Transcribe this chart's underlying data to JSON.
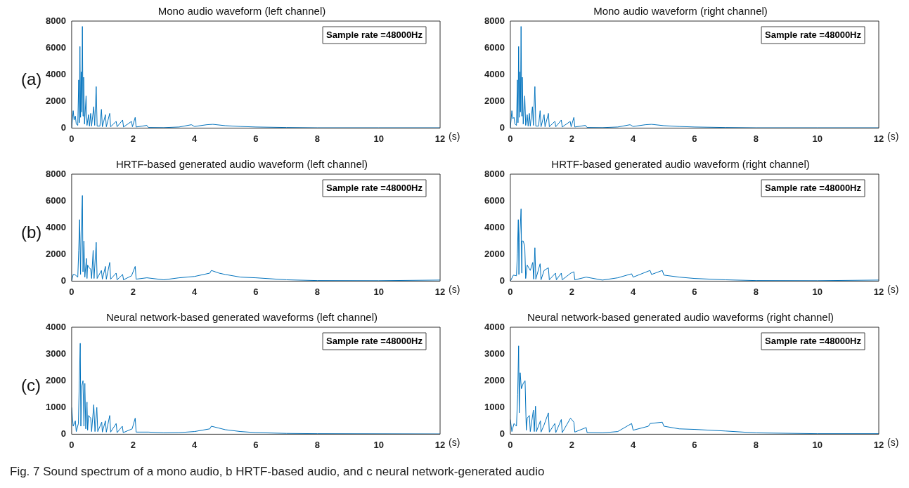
{
  "chart_data": [
    {
      "type": "line",
      "title": "Mono audio waveform (left channel)",
      "xlabel": "(s)",
      "annotations": [
        "Sample rate =48000Hz",
        "(a)"
      ],
      "marker": "none",
      "xlim": [
        0,
        12
      ],
      "xticks": [
        0,
        2,
        4,
        6,
        8,
        10,
        12
      ],
      "ylim": [
        0,
        8000
      ],
      "yticks": [
        0,
        2000,
        4000,
        6000,
        8000
      ],
      "series": [
        {
          "color": "#0072bd",
          "x": [
            0,
            0.05,
            0.08,
            0.12,
            0.15,
            0.2,
            0.23,
            0.25,
            0.27,
            0.29,
            0.31,
            0.33,
            0.35,
            0.37,
            0.39,
            0.42,
            0.47,
            0.5,
            0.55,
            0.58,
            0.62,
            0.65,
            0.72,
            0.75,
            0.8,
            0.83,
            0.92,
            0.97,
            1.0,
            1.1,
            1.13,
            1.24,
            1.27,
            1.45,
            1.48,
            1.66,
            1.69,
            1.95,
            1.98,
            2.07,
            2.1,
            2.45,
            2.5,
            3.0,
            3.5,
            3.9,
            4.0,
            4.4,
            4.6,
            5.0,
            5.5,
            6.0,
            7.0,
            8.0,
            10,
            12
          ],
          "values": [
            0,
            1300,
            600,
            900,
            300,
            200,
            3600,
            400,
            6100,
            800,
            4200,
            1200,
            7600,
            900,
            3800,
            300,
            2400,
            200,
            1000,
            150,
            1100,
            150,
            1600,
            200,
            3100,
            150,
            150,
            1400,
            100,
            1000,
            100,
            1100,
            100,
            500,
            100,
            600,
            80,
            500,
            100,
            800,
            80,
            200,
            40,
            30,
            80,
            250,
            120,
            250,
            280,
            180,
            120,
            80,
            40,
            20,
            20,
            20
          ]
        }
      ]
    },
    {
      "type": "line",
      "title": "Mono audio waveform (right channel)",
      "xlabel": "(s)",
      "annotations": [
        "Sample rate =48000Hz"
      ],
      "marker": "none",
      "xlim": [
        0,
        12
      ],
      "xticks": [
        0,
        2,
        4,
        6,
        8,
        10,
        12
      ],
      "ylim": [
        0,
        8000
      ],
      "yticks": [
        0,
        2000,
        4000,
        6000,
        8000
      ],
      "series": [
        {
          "color": "#0072bd",
          "x": [
            0,
            0.05,
            0.08,
            0.12,
            0.15,
            0.2,
            0.23,
            0.25,
            0.27,
            0.29,
            0.31,
            0.33,
            0.35,
            0.37,
            0.39,
            0.42,
            0.47,
            0.5,
            0.55,
            0.58,
            0.62,
            0.65,
            0.72,
            0.75,
            0.8,
            0.83,
            0.92,
            0.97,
            1.0,
            1.1,
            1.13,
            1.24,
            1.27,
            1.45,
            1.48,
            1.66,
            1.69,
            1.95,
            1.98,
            2.07,
            2.1,
            2.45,
            2.5,
            3.0,
            3.5,
            3.9,
            4.0,
            4.4,
            4.6,
            5.0,
            5.5,
            6.0,
            7.0,
            8.0,
            10,
            12
          ],
          "values": [
            0,
            1300,
            700,
            800,
            300,
            200,
            3600,
            400,
            6100,
            800,
            4200,
            1200,
            7600,
            900,
            3800,
            300,
            2400,
            200,
            1000,
            150,
            1100,
            150,
            1600,
            200,
            3100,
            150,
            150,
            1300,
            100,
            1000,
            100,
            1100,
            100,
            500,
            100,
            600,
            80,
            500,
            100,
            800,
            80,
            200,
            40,
            30,
            80,
            250,
            120,
            250,
            280,
            180,
            120,
            80,
            40,
            20,
            20,
            20
          ]
        }
      ]
    },
    {
      "type": "line",
      "title": "HRTF-based generated audio waveform (left channel)",
      "xlabel": "(s)",
      "annotations": [
        "Sample rate =48000Hz",
        "(b)"
      ],
      "marker": "none",
      "xlim": [
        0,
        12
      ],
      "xticks": [
        0,
        2,
        4,
        6,
        8,
        10,
        12
      ],
      "ylim": [
        0,
        8000
      ],
      "yticks": [
        0,
        2000,
        4000,
        6000,
        8000
      ],
      "series": [
        {
          "color": "#0072bd",
          "x": [
            0,
            0.05,
            0.1,
            0.2,
            0.23,
            0.26,
            0.29,
            0.31,
            0.35,
            0.37,
            0.4,
            0.43,
            0.48,
            0.5,
            0.52,
            0.57,
            0.62,
            0.65,
            0.7,
            0.73,
            0.8,
            0.83,
            0.97,
            1.0,
            1.1,
            1.13,
            1.24,
            1.27,
            1.45,
            1.48,
            1.66,
            1.69,
            1.95,
            2.07,
            2.1,
            2.45,
            3.0,
            3.5,
            4.0,
            4.5,
            4.55,
            4.8,
            5.0,
            5.5,
            6.0,
            7.0,
            8.0,
            10,
            12
          ],
          "values": [
            0,
            500,
            500,
            300,
            2300,
            4600,
            500,
            3800,
            6400,
            700,
            3000,
            300,
            1700,
            200,
            1200,
            1000,
            900,
            200,
            2300,
            200,
            2900,
            200,
            800,
            150,
            1100,
            150,
            1400,
            150,
            600,
            100,
            500,
            100,
            400,
            1100,
            150,
            250,
            100,
            250,
            350,
            600,
            800,
            600,
            500,
            300,
            250,
            100,
            40,
            30,
            80
          ]
        }
      ]
    },
    {
      "type": "line",
      "title": "HRTF-based generated audio waveform (right channel)",
      "xlabel": "(s)",
      "annotations": [
        "Sample rate =48000Hz"
      ],
      "marker": "none",
      "xlim": [
        0,
        12
      ],
      "xticks": [
        0,
        2,
        4,
        6,
        8,
        10,
        12
      ],
      "ylim": [
        0,
        8000
      ],
      "yticks": [
        0,
        2000,
        4000,
        6000,
        8000
      ],
      "series": [
        {
          "color": "#0072bd",
          "x": [
            0,
            0.1,
            0.2,
            0.23,
            0.26,
            0.28,
            0.3,
            0.35,
            0.37,
            0.38,
            0.42,
            0.47,
            0.5,
            0.55,
            0.6,
            0.65,
            0.73,
            0.76,
            0.8,
            0.83,
            0.97,
            1.0,
            1.1,
            1.24,
            1.27,
            1.47,
            1.5,
            1.66,
            1.69,
            1.97,
            2.07,
            2.1,
            2.47,
            3.0,
            3.5,
            3.95,
            4.0,
            4.55,
            4.6,
            4.95,
            5.0,
            5.5,
            6.0,
            7.0,
            8.0,
            10,
            12
          ],
          "values": [
            0,
            450,
            400,
            2100,
            4600,
            500,
            2900,
            5400,
            600,
            3000,
            3000,
            2600,
            200,
            1200,
            1000,
            800,
            1400,
            150,
            2500,
            150,
            1300,
            100,
            800,
            1000,
            100,
            600,
            100,
            600,
            100,
            600,
            700,
            100,
            300,
            80,
            250,
            550,
            300,
            800,
            500,
            800,
            450,
            300,
            200,
            100,
            40,
            30,
            80
          ]
        }
      ]
    },
    {
      "type": "line",
      "title": "Neural network-based generated waveforms (left channel)",
      "xlabel": "(s)",
      "annotations": [
        "Sample rate =48000Hz",
        "(c)"
      ],
      "marker": "none",
      "xlim": [
        0,
        12
      ],
      "xticks": [
        0,
        2,
        4,
        6,
        8,
        10,
        12
      ],
      "ylim": [
        0,
        4000
      ],
      "yticks": [
        0,
        1000,
        2000,
        3000,
        4000
      ],
      "series": [
        {
          "color": "#0072bd",
          "x": [
            0,
            0.05,
            0.12,
            0.15,
            0.22,
            0.25,
            0.28,
            0.3,
            0.33,
            0.37,
            0.4,
            0.43,
            0.46,
            0.5,
            0.52,
            0.55,
            0.62,
            0.65,
            0.72,
            0.76,
            0.82,
            0.85,
            0.98,
            1.0,
            1.1,
            1.13,
            1.24,
            1.27,
            1.45,
            1.48,
            1.65,
            1.68,
            1.97,
            2.07,
            2.1,
            2.5,
            3.0,
            3.5,
            4.0,
            4.5,
            4.55,
            5.0,
            5.5,
            6.0,
            7.0,
            8.0,
            12
          ],
          "values": [
            1000,
            300,
            500,
            100,
            400,
            2000,
            3400,
            300,
            1800,
            2000,
            300,
            1900,
            200,
            1200,
            150,
            700,
            600,
            100,
            1100,
            100,
            1000,
            100,
            450,
            80,
            500,
            80,
            700,
            80,
            400,
            60,
            300,
            60,
            200,
            600,
            80,
            80,
            50,
            60,
            100,
            200,
            300,
            170,
            100,
            60,
            30,
            20,
            10
          ]
        }
      ]
    },
    {
      "type": "line",
      "title": "Neural network-based generated audio waveforms (right channel)",
      "xlabel": "(s)",
      "annotations": [
        "Sample rate =48000Hz",
        "Fig. 7  Sound spectrum of a mono audio, b HRTF-based audio, and c neural network-generated audio"
      ],
      "marker": "none",
      "xlim": [
        0,
        12
      ],
      "xticks": [
        0,
        2,
        4,
        6,
        8,
        10,
        12
      ],
      "ylim": [
        0,
        4000
      ],
      "yticks": [
        0,
        1000,
        2000,
        3000,
        4000
      ],
      "series": [
        {
          "color": "#0072bd",
          "x": [
            0,
            0.05,
            0.12,
            0.2,
            0.24,
            0.27,
            0.29,
            0.32,
            0.36,
            0.42,
            0.48,
            0.52,
            0.55,
            0.62,
            0.65,
            0.75,
            0.78,
            0.82,
            0.85,
            0.98,
            1.0,
            1.1,
            1.24,
            1.27,
            1.45,
            1.48,
            1.66,
            1.69,
            1.96,
            2.07,
            2.1,
            2.47,
            2.5,
            3.0,
            3.5,
            3.95,
            4.0,
            4.5,
            4.55,
            4.95,
            5.0,
            5.5,
            6.0,
            7.0,
            8.0,
            10,
            12
          ],
          "values": [
            550,
            100,
            400,
            300,
            1500,
            3300,
            800,
            2300,
            1700,
            1900,
            2000,
            150,
            600,
            700,
            100,
            900,
            100,
            1050,
            100,
            500,
            80,
            350,
            800,
            80,
            400,
            60,
            550,
            60,
            600,
            450,
            80,
            250,
            60,
            50,
            100,
            400,
            150,
            300,
            400,
            450,
            300,
            200,
            180,
            120,
            50,
            20,
            20
          ]
        }
      ]
    }
  ]
}
